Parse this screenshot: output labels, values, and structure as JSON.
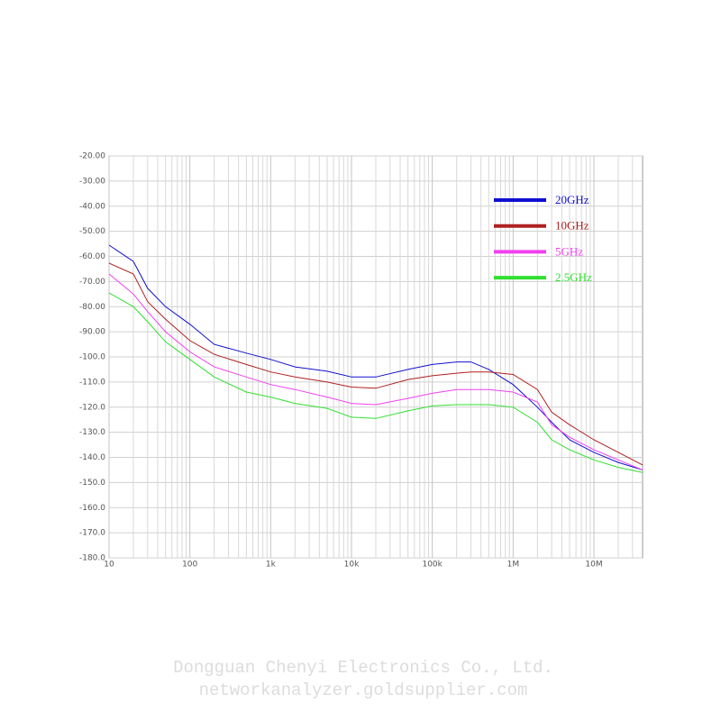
{
  "chart_data": {
    "type": "line",
    "xscale": "log",
    "grid": true,
    "minor_grid": true,
    "legend_position": "upper right",
    "xlim": [
      10,
      40000000
    ],
    "ylim": [
      -180,
      -20
    ],
    "xticks": [
      10,
      100,
      {
        "value": 1000,
        "label": "1k"
      },
      {
        "value": 10000,
        "label": "10k"
      },
      {
        "value": 100000,
        "label": "100k"
      },
      {
        "value": 1000000,
        "label": "1M"
      },
      {
        "value": 10000000,
        "label": "10M"
      }
    ],
    "yticks": [
      {
        "value": -20,
        "label": "-20.00"
      },
      {
        "value": -30,
        "label": "-30.00"
      },
      {
        "value": -40,
        "label": "-40.00"
      },
      {
        "value": -50,
        "label": "-50.00"
      },
      {
        "value": -60,
        "label": "-60.00"
      },
      {
        "value": -70,
        "label": "-70.00"
      },
      {
        "value": -80,
        "label": "-80.00"
      },
      {
        "value": -90,
        "label": "-90.00"
      },
      {
        "value": -100,
        "label": "-100.0"
      },
      {
        "value": -110,
        "label": "-110.0"
      },
      {
        "value": -120,
        "label": "-120.0"
      },
      {
        "value": -130,
        "label": "-130.0"
      },
      {
        "value": -140,
        "label": "-140.0"
      },
      {
        "value": -150,
        "label": "-150.0"
      },
      {
        "value": -160,
        "label": "-160.0"
      },
      {
        "value": -170,
        "label": "-170.0"
      },
      {
        "value": -180,
        "label": "-180.0"
      }
    ],
    "x": [
      10,
      20,
      30,
      50,
      100,
      200,
      500,
      1000,
      2000,
      5000,
      10000,
      20000,
      50000,
      100000,
      200000,
      300000,
      500000,
      1000000,
      2000000,
      3000000,
      5000000,
      10000000,
      20000000,
      40000000
    ],
    "series": [
      {
        "name": "20GHz",
        "color": "#1010d0",
        "values": [
          -55.5,
          -62,
          -72.7,
          -80,
          -87,
          -95,
          -98.5,
          -101,
          -104,
          -105.7,
          -108,
          -108,
          -105,
          -103,
          -102,
          -102,
          -105,
          -111,
          -120,
          -126,
          -133,
          -138,
          -142,
          -145
        ]
      },
      {
        "name": "10GHz",
        "color": "#b02020",
        "values": [
          -62.7,
          -67,
          -78,
          -85,
          -93.5,
          -99,
          -103,
          -106,
          -108,
          -110,
          -112,
          -112.5,
          -109,
          -107.5,
          -106.5,
          -106,
          -106,
          -107,
          -113,
          -122,
          -127,
          -133,
          -138,
          -143
        ]
      },
      {
        "name": "5GHz",
        "color": "#f040f0",
        "values": [
          -67,
          -75,
          -82,
          -90,
          -98,
          -104,
          -108,
          -111,
          -113,
          -116,
          -118.5,
          -119,
          -116.5,
          -114.5,
          -113,
          -113,
          -113,
          -114,
          -118,
          -127,
          -132,
          -137,
          -141,
          -145
        ]
      },
      {
        "name": "2.5GHz",
        "color": "#30e030",
        "values": [
          -74.5,
          -80,
          -86,
          -94,
          -101,
          -108,
          -114,
          -116,
          -118.5,
          -120.5,
          -124,
          -124.5,
          -121.5,
          -119.5,
          -119,
          -119,
          -119,
          -120,
          -126,
          -133,
          -137,
          -141,
          -144,
          -146
        ]
      }
    ]
  },
  "footer": {
    "company": "Dongguan Chenyi Electronics Co., Ltd.",
    "website": "networkanalyzer.goldsupplier.com"
  }
}
